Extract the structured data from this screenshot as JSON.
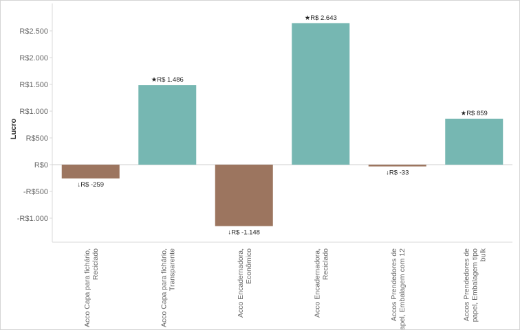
{
  "chart_data": {
    "type": "bar",
    "ylabel": "Lucro",
    "xlabel": "",
    "ylim": [
      -1400,
      2850
    ],
    "yticks": [
      -1000,
      -500,
      0,
      500,
      1000,
      1500,
      2000,
      2500
    ],
    "ytick_labels": [
      "-R$1.000",
      "-R$500",
      "R$0",
      "R$500",
      "R$1.000",
      "R$1.500",
      "R$2.000",
      "R$2.500"
    ],
    "grid": false,
    "categories": [
      [
        "Acco Capa para fichário,",
        "Reciclado"
      ],
      [
        "Acco Capa para fichário,",
        "Transparente"
      ],
      [
        "Acco Encadernadora,",
        "Econômico"
      ],
      [
        "Acco Encadernadora,",
        "Reciclado"
      ],
      [
        "Accos Prendedores de",
        "papel, Embalagem com 12"
      ],
      [
        "Accos Prendedores de",
        "papel, Embalagem tipo",
        "bulk"
      ]
    ],
    "values": [
      -259,
      1486,
      -1148,
      2643,
      -33,
      859
    ],
    "data_labels": [
      "↓R$ -259",
      "★R$ 1.486",
      "↓R$ -1.148",
      "★R$ 2.643",
      "↓R$ -33",
      "★R$ 859"
    ],
    "colors": {
      "positive": "#76b7b2",
      "negative": "#9c755f"
    }
  }
}
